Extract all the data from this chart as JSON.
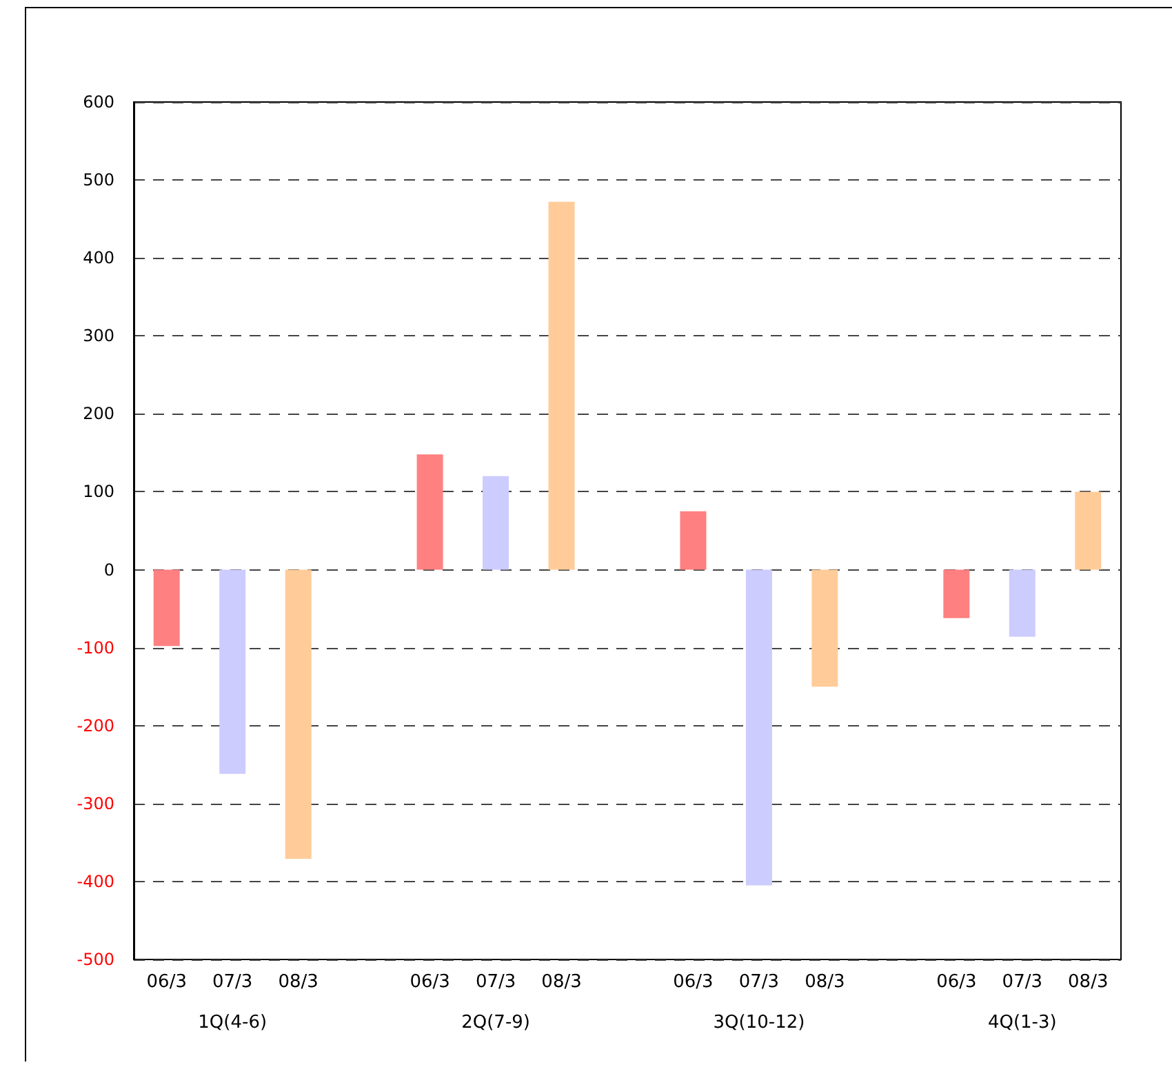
{
  "chart_data": {
    "type": "bar",
    "categories": [
      "06/3",
      "07/3",
      "08/3",
      null,
      "06/3",
      "07/3",
      "08/3",
      null,
      "06/3",
      "07/3",
      "08/3",
      null,
      "06/3",
      "07/3",
      "08/3"
    ],
    "values": [
      -98,
      -262,
      -371,
      null,
      148,
      120,
      472,
      null,
      75,
      -405,
      -150,
      null,
      -62,
      -86,
      100
    ],
    "colors": [
      "#ff8080",
      "#ccccff",
      "#ffcc99",
      null,
      "#ff8080",
      "#ccccff",
      "#ffcc99",
      null,
      "#ff8080",
      "#ccccff",
      "#ffcc99",
      null,
      "#ff8080",
      "#ccccff",
      "#ffcc99"
    ],
    "annotations": [
      "1Q(4-6)",
      "2Q(7-9)",
      "3Q(10-12)",
      "4Q(1-3)"
    ],
    "ylim": [
      -500,
      600
    ],
    "yticks": [
      -500,
      -400,
      -300,
      -200,
      -100,
      0,
      100,
      200,
      300,
      400,
      500,
      600
    ],
    "grid": "y"
  }
}
